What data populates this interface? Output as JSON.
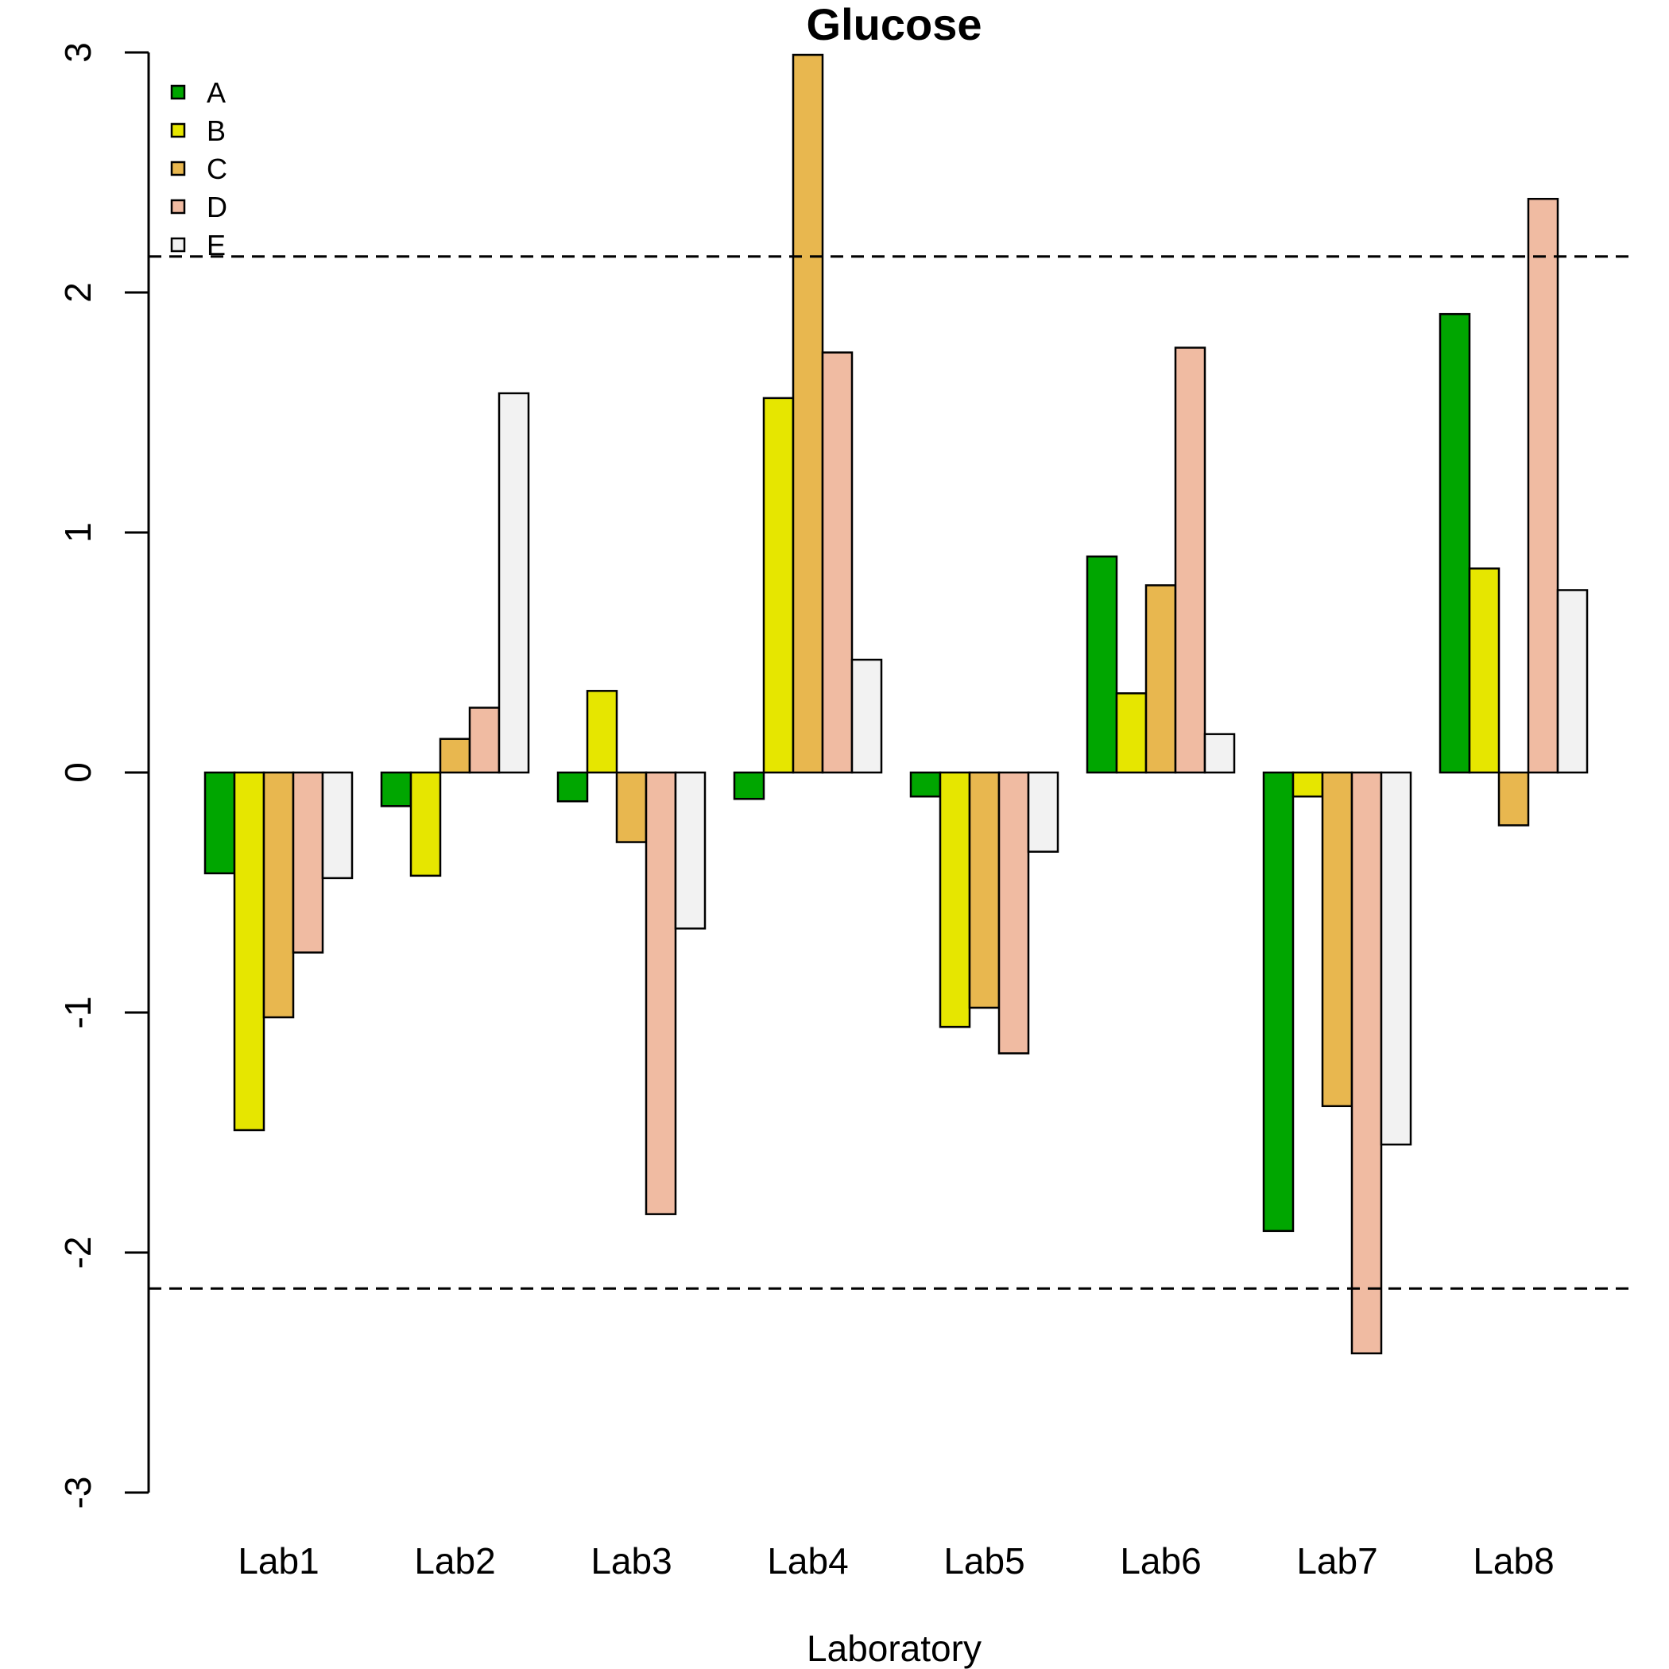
{
  "chart_data": {
    "type": "bar",
    "title": "Glucose",
    "xlabel": "Laboratory",
    "ylabel": "",
    "ylim": [
      -3,
      3
    ],
    "yticks": [
      -3,
      -2,
      -1,
      0,
      1,
      2,
      3
    ],
    "reference_lines": [
      2.15,
      -2.15
    ],
    "legend_position": "top-left",
    "grid": false,
    "categories": [
      "Lab1",
      "Lab2",
      "Lab3",
      "Lab4",
      "Lab5",
      "Lab6",
      "Lab7",
      "Lab8"
    ],
    "series": [
      {
        "name": "A",
        "color": "#00a600",
        "values": [
          -0.42,
          -0.14,
          -0.12,
          -0.11,
          -0.1,
          0.9,
          -1.91,
          1.91
        ]
      },
      {
        "name": "B",
        "color": "#e6e600",
        "values": [
          -1.49,
          -0.43,
          0.34,
          1.56,
          -1.06,
          0.33,
          -0.1,
          0.85
        ]
      },
      {
        "name": "C",
        "color": "#e8b74f",
        "values": [
          -1.02,
          0.14,
          -0.29,
          2.99,
          -0.98,
          0.78,
          -1.39,
          -0.22
        ]
      },
      {
        "name": "D",
        "color": "#f0bba2",
        "values": [
          -0.75,
          0.27,
          -1.84,
          1.75,
          -1.17,
          1.77,
          -2.42,
          2.39
        ]
      },
      {
        "name": "E",
        "color": "#f2f2f2",
        "values": [
          -0.44,
          1.58,
          -0.65,
          0.47,
          -0.33,
          0.16,
          -1.55,
          0.76
        ]
      }
    ]
  }
}
